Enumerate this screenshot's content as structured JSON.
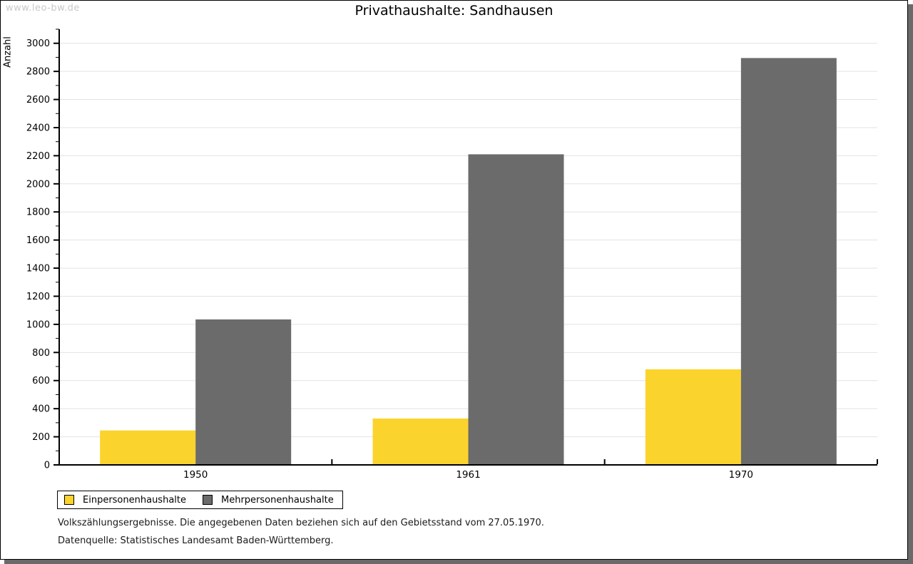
{
  "watermark": "www.leo-bw.de",
  "title": "Privathaushalte: Sandhausen",
  "footnotes": [
    "Volkszählungsergebnisse. Die angegebenen Daten beziehen sich auf den Gebietsstand vom 27.05.1970.",
    "Datenquelle: Statistisches Landesamt Baden-Württemberg."
  ],
  "chart_data": {
    "type": "bar",
    "title": "Privathaushalte: Sandhausen",
    "ylabel": "Anzahl",
    "xlabel": "",
    "categories": [
      "1950",
      "1961",
      "1970"
    ],
    "series": [
      {
        "name": "Einpersonenhaushalte",
        "color": "#fbd32d",
        "values": [
          245,
          330,
          680
        ]
      },
      {
        "name": "Mehrpersonenhaushalte",
        "color": "#6b6b6b",
        "values": [
          1035,
          2210,
          2895
        ]
      }
    ],
    "ylim": [
      0,
      3100
    ],
    "ytick_step": 200,
    "ytick_label_max": 3000,
    "yminor_step": 100,
    "grid": "horizontal-major",
    "gridline_color": "#e3e3e3",
    "axis_color": "#000000",
    "legend_position": "bottom-left"
  },
  "frame": {
    "border_color": "#000000",
    "shadow_color": "#6a6a6a",
    "watermark_color": "#c8c8c8"
  }
}
